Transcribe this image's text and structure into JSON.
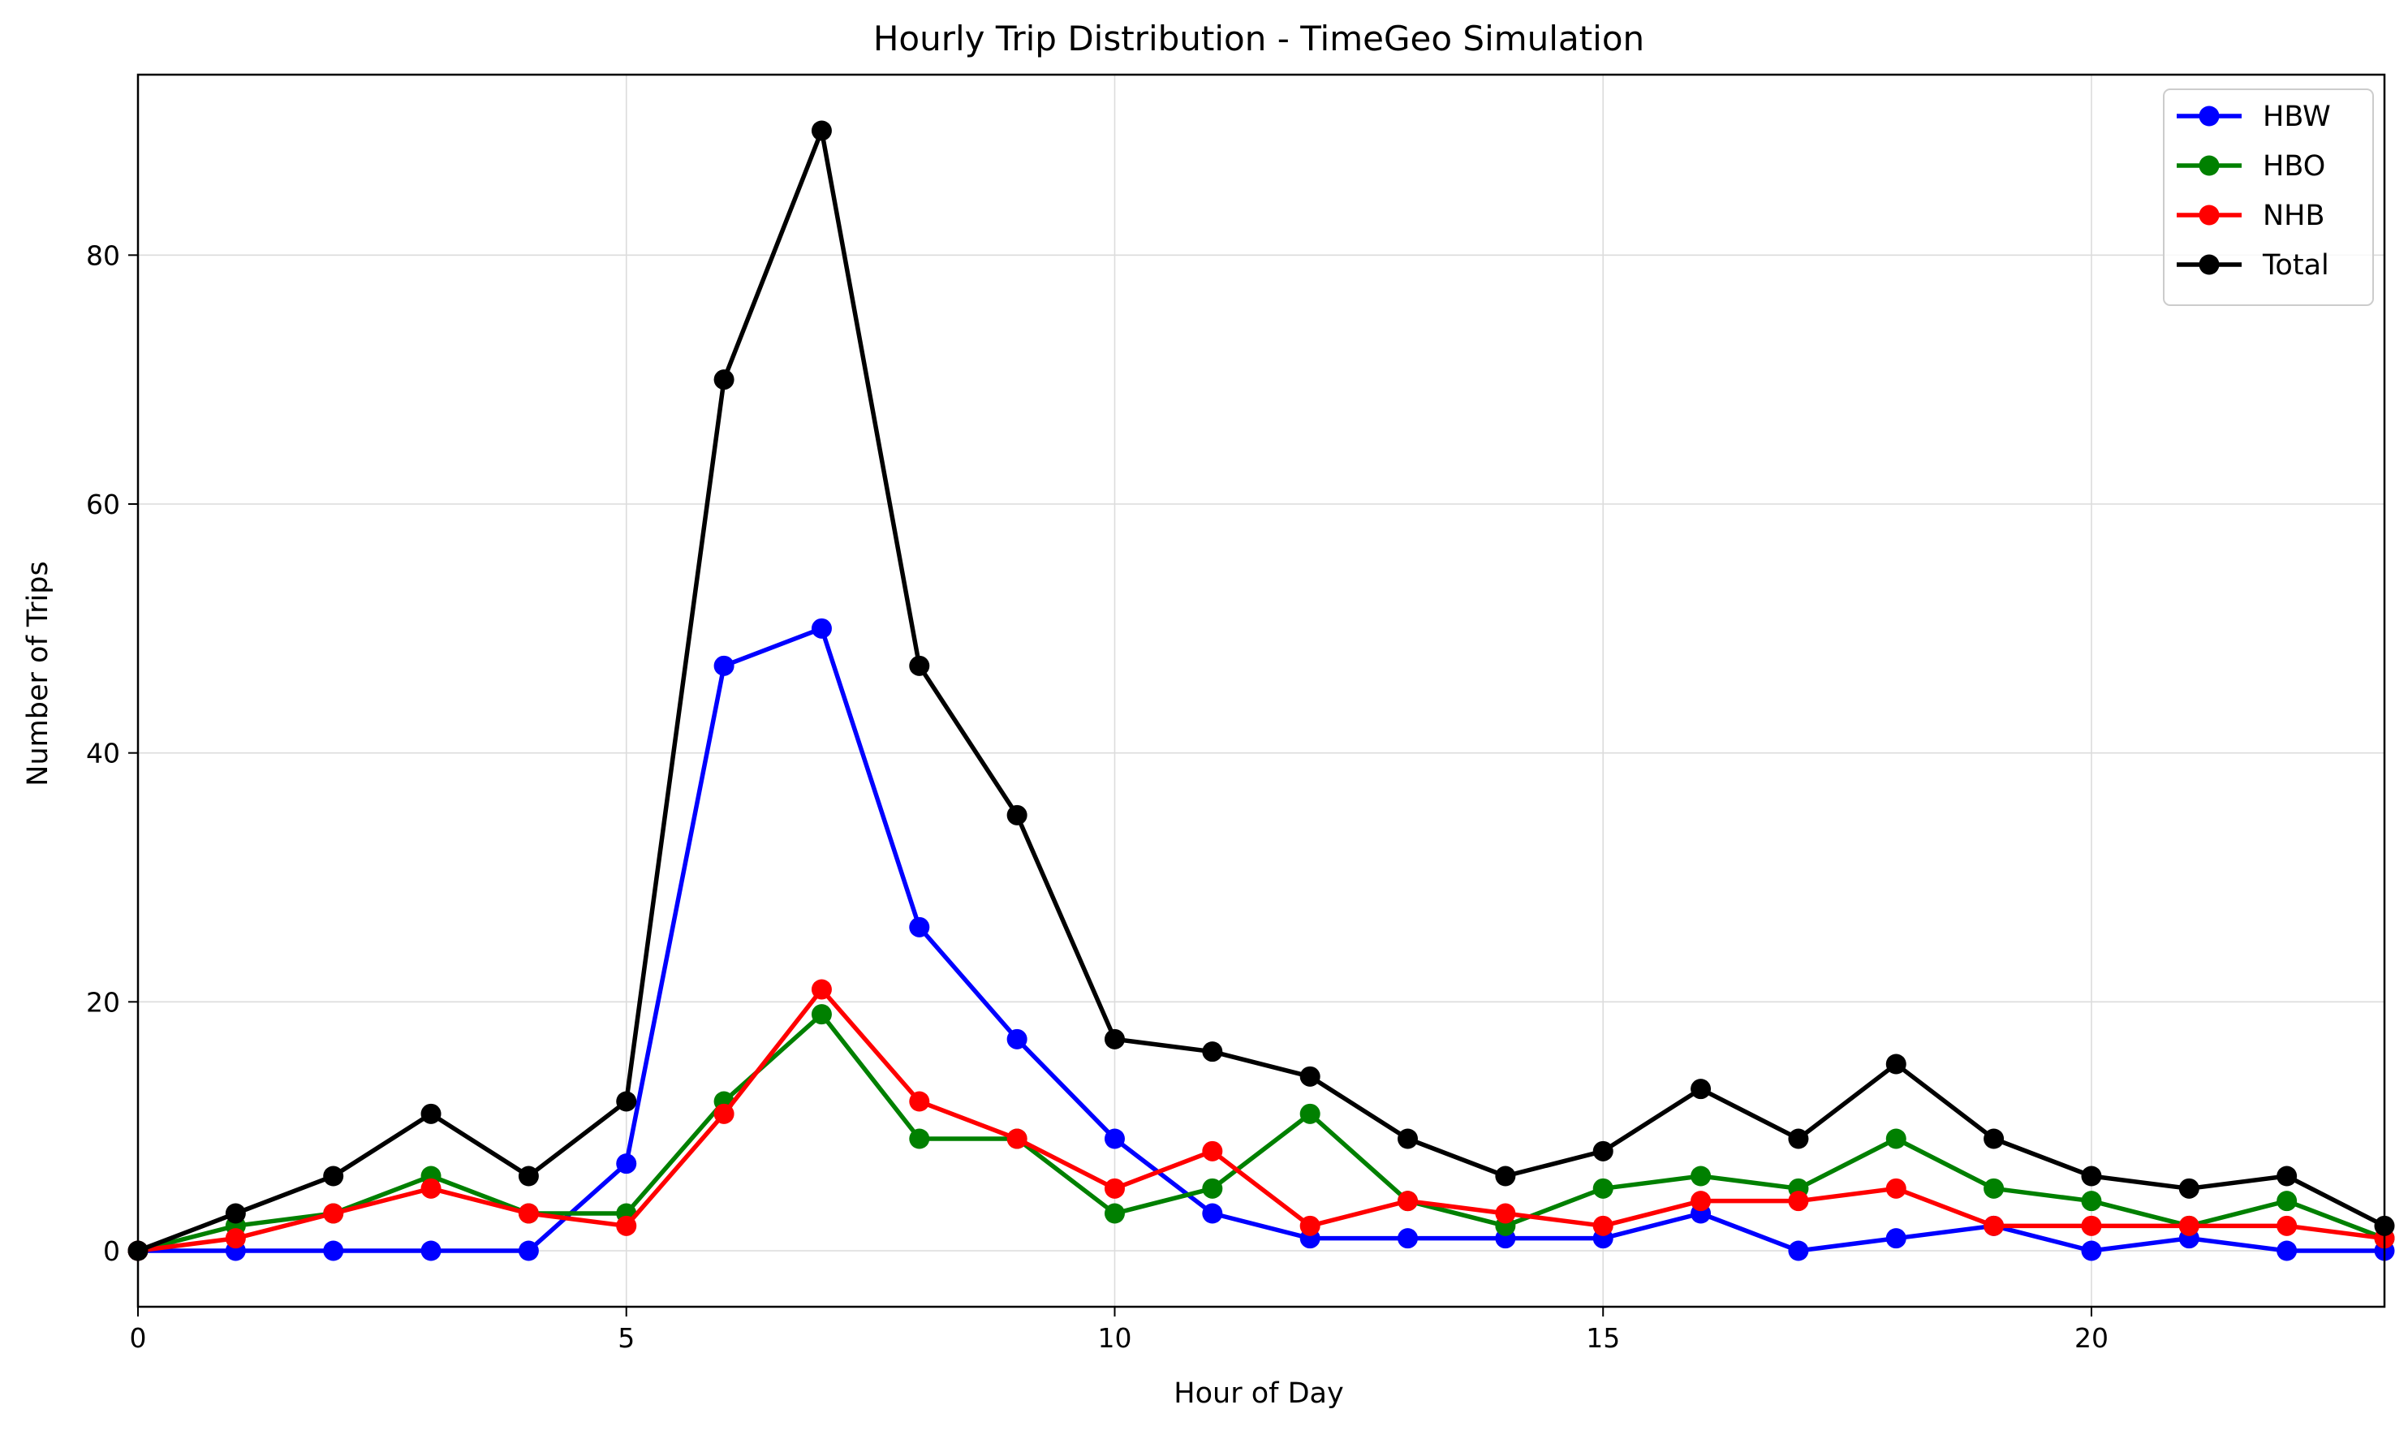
{
  "chart_data": {
    "type": "line",
    "title": "Hourly Trip Distribution - TimeGeo Simulation",
    "xlabel": "Hour of Day",
    "ylabel": "Number of Trips",
    "x": [
      0,
      1,
      2,
      3,
      4,
      5,
      6,
      7,
      8,
      9,
      10,
      11,
      12,
      13,
      14,
      15,
      16,
      17,
      18,
      19,
      20,
      21,
      22,
      23
    ],
    "xlim": [
      0,
      23
    ],
    "ylim": [
      -4.5,
      94.5
    ],
    "xticks": [
      0,
      5,
      10,
      15,
      20
    ],
    "yticks": [
      0,
      20,
      40,
      60,
      80
    ],
    "grid": true,
    "legend_position": "top-right",
    "series": [
      {
        "name": "HBW",
        "color": "#0000ff",
        "values": [
          0,
          0,
          0,
          0,
          0,
          7,
          47,
          50,
          26,
          17,
          9,
          3,
          1,
          1,
          1,
          1,
          3,
          0,
          1,
          2,
          0,
          1,
          0,
          0
        ]
      },
      {
        "name": "HBO",
        "color": "#008000",
        "values": [
          0,
          2,
          3,
          6,
          3,
          3,
          12,
          19,
          9,
          9,
          3,
          5,
          11,
          4,
          2,
          5,
          6,
          5,
          9,
          5,
          4,
          2,
          4,
          1
        ]
      },
      {
        "name": "NHB",
        "color": "#ff0000",
        "values": [
          0,
          1,
          3,
          5,
          3,
          2,
          11,
          21,
          12,
          9,
          5,
          8,
          2,
          4,
          3,
          2,
          4,
          4,
          5,
          2,
          2,
          2,
          2,
          1
        ]
      },
      {
        "name": "Total",
        "color": "#000000",
        "values": [
          0,
          3,
          6,
          11,
          6,
          12,
          70,
          90,
          47,
          35,
          17,
          16,
          14,
          9,
          6,
          8,
          13,
          9,
          15,
          9,
          6,
          5,
          6,
          2
        ]
      }
    ]
  }
}
